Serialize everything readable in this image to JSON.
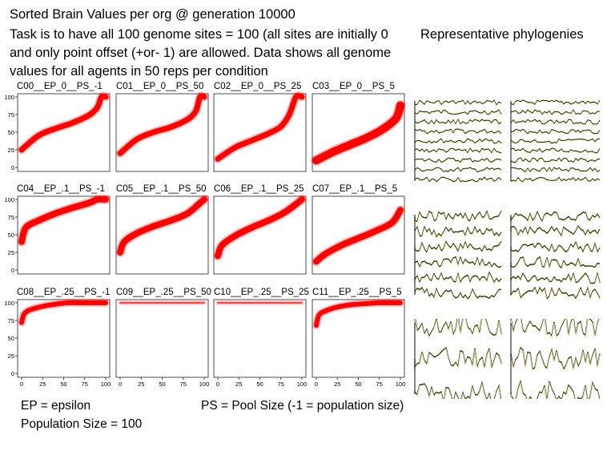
{
  "header": {
    "line1": "Sorted Brain Values per org @ generation 10000",
    "line2": "Task is to have all 100 genome sites = 100 (all sites are initially 0",
    "line3": "and only point offset (+or- 1) are allowed.  Data shows all genome",
    "line4": "values for all agents in 50 reps per condition",
    "phylo_title": "Representative phylogenies"
  },
  "notes": {
    "ep": "EP = epsilon",
    "ps": "PS = Pool Size (-1 = population size)",
    "pop": "Population Size = 100"
  },
  "colors": {
    "series": "#ff0000",
    "phylo_fill": "#f5f0b0",
    "phylo_line": "#2a2a10"
  },
  "chart_data": [
    {
      "type": "line",
      "title": "C00__EP_0__PS_-1",
      "series": [
        {
          "x": [
            0,
            20,
            40,
            60,
            80,
            90,
            95,
            100
          ],
          "y": [
            25,
            45,
            55,
            63,
            74,
            85,
            100,
            100
          ]
        }
      ],
      "xlim": [
        0,
        100
      ],
      "ylim": [
        0,
        100
      ],
      "xticks": [],
      "yticks": [
        0,
        25,
        50,
        75,
        100
      ],
      "band": 7
    },
    {
      "type": "line",
      "title": "C01__EP_0__PS_50",
      "series": [
        {
          "x": [
            0,
            20,
            40,
            60,
            80,
            90,
            95,
            100
          ],
          "y": [
            20,
            40,
            50,
            57,
            68,
            80,
            100,
            100
          ]
        }
      ],
      "xlim": [
        0,
        100
      ],
      "ylim": [
        0,
        100
      ],
      "xticks": [],
      "yticks": [],
      "band": 7
    },
    {
      "type": "line",
      "title": "C02__EP_0__PS_25",
      "series": [
        {
          "x": [
            0,
            20,
            40,
            60,
            75,
            85,
            93,
            100
          ],
          "y": [
            12,
            28,
            38,
            48,
            58,
            75,
            100,
            100
          ]
        }
      ],
      "xlim": [
        0,
        100
      ],
      "ylim": [
        0,
        100
      ],
      "xticks": [],
      "yticks": [],
      "band": 7
    },
    {
      "type": "line",
      "title": "C03__EP_0__PS_5",
      "series": [
        {
          "x": [
            0,
            20,
            40,
            60,
            80,
            95,
            100
          ],
          "y": [
            10,
            22,
            32,
            42,
            55,
            70,
            88
          ]
        }
      ],
      "xlim": [
        0,
        100
      ],
      "ylim": [
        0,
        100
      ],
      "xticks": [],
      "yticks": [],
      "band": 10
    },
    {
      "type": "line",
      "title": "C04__EP_.1__PS_-1",
      "series": [
        {
          "x": [
            0,
            5,
            20,
            40,
            60,
            80,
            90,
            100
          ],
          "y": [
            40,
            60,
            70,
            80,
            88,
            95,
            100,
            100
          ]
        }
      ],
      "xlim": [
        0,
        100
      ],
      "ylim": [
        0,
        100
      ],
      "xticks": [],
      "yticks": [
        0,
        25,
        50,
        75,
        100
      ],
      "band": 8
    },
    {
      "type": "line",
      "title": "C05__EP_.1__PS_50",
      "series": [
        {
          "x": [
            0,
            5,
            20,
            40,
            60,
            80,
            95,
            100
          ],
          "y": [
            25,
            40,
            52,
            62,
            70,
            80,
            95,
            100
          ]
        }
      ],
      "xlim": [
        0,
        100
      ],
      "ylim": [
        0,
        100
      ],
      "xticks": [],
      "yticks": [],
      "band": 8
    },
    {
      "type": "line",
      "title": "C06__EP_.1__PS_25",
      "series": [
        {
          "x": [
            0,
            5,
            20,
            40,
            60,
            80,
            100
          ],
          "y": [
            20,
            35,
            48,
            60,
            70,
            82,
            100
          ]
        }
      ],
      "xlim": [
        0,
        100
      ],
      "ylim": [
        0,
        100
      ],
      "xticks": [],
      "yticks": [],
      "band": 8
    },
    {
      "type": "line",
      "title": "C07__EP_.1__PS_5",
      "series": [
        {
          "x": [
            0,
            10,
            30,
            50,
            70,
            90,
            100
          ],
          "y": [
            12,
            22,
            35,
            45,
            55,
            67,
            85
          ]
        }
      ],
      "xlim": [
        0,
        100
      ],
      "ylim": [
        0,
        100
      ],
      "xticks": [],
      "yticks": [],
      "band": 8
    },
    {
      "type": "line",
      "title": "C08__EP_.25__PS_-1",
      "series": [
        {
          "x": [
            0,
            3,
            10,
            25,
            40,
            55,
            70,
            100
          ],
          "y": [
            72,
            84,
            90,
            95,
            98,
            100,
            100,
            100
          ]
        }
      ],
      "xlim": [
        0,
        100
      ],
      "ylim": [
        0,
        100
      ],
      "xticks": [
        0,
        25,
        50,
        75,
        100
      ],
      "yticks": [
        0,
        25,
        50,
        75,
        100
      ],
      "band": 6
    },
    {
      "type": "line",
      "title": "C09__EP_.25__PS_50",
      "series": [
        {
          "x": [
            0,
            100
          ],
          "y": [
            100,
            100
          ]
        }
      ],
      "xlim": [
        0,
        100
      ],
      "ylim": [
        0,
        100
      ],
      "xticks": [
        0,
        25,
        50,
        75,
        100
      ],
      "yticks": [],
      "band": 1
    },
    {
      "type": "line",
      "title": "C10__EP_.25__PS_25",
      "series": [
        {
          "x": [
            0,
            100
          ],
          "y": [
            100,
            100
          ]
        }
      ],
      "xlim": [
        0,
        100
      ],
      "ylim": [
        0,
        100
      ],
      "xticks": [
        0,
        25,
        50,
        75,
        100
      ],
      "yticks": [],
      "band": 1
    },
    {
      "type": "line",
      "title": "C11__EP_.25__PS_5",
      "series": [
        {
          "x": [
            0,
            3,
            10,
            25,
            40,
            60,
            75,
            100
          ],
          "y": [
            68,
            82,
            88,
            94,
            97,
            99,
            100,
            100
          ]
        }
      ],
      "xlim": [
        0,
        100
      ],
      "ylim": [
        0,
        100
      ],
      "xticks": [
        0,
        25,
        50,
        75,
        100
      ],
      "yticks": [],
      "band": 6
    }
  ]
}
